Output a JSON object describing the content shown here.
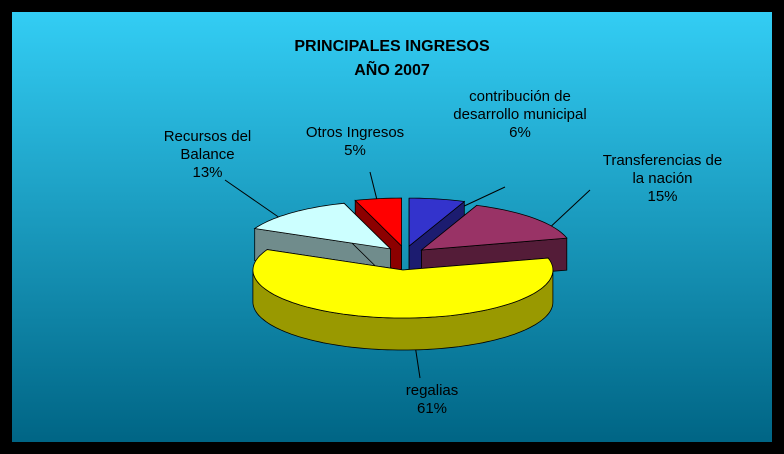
{
  "chart_data": {
    "type": "pie3d",
    "title": [
      "PRINCIPALES INGRESOS",
      "AÑO 2007"
    ],
    "categories": [
      "contribución de desarrollo municipal",
      "Transferencias de la nación",
      "regalias",
      "Recursos del Balance",
      "Otros Ingresos"
    ],
    "values": [
      6,
      15,
      61,
      13,
      5
    ],
    "value_labels": [
      "6%",
      "15%",
      "61%",
      "13%",
      "5%"
    ],
    "colors": [
      "#3333cc",
      "#993366",
      "#ffff00",
      "#ccffff",
      "#ff0000"
    ]
  }
}
